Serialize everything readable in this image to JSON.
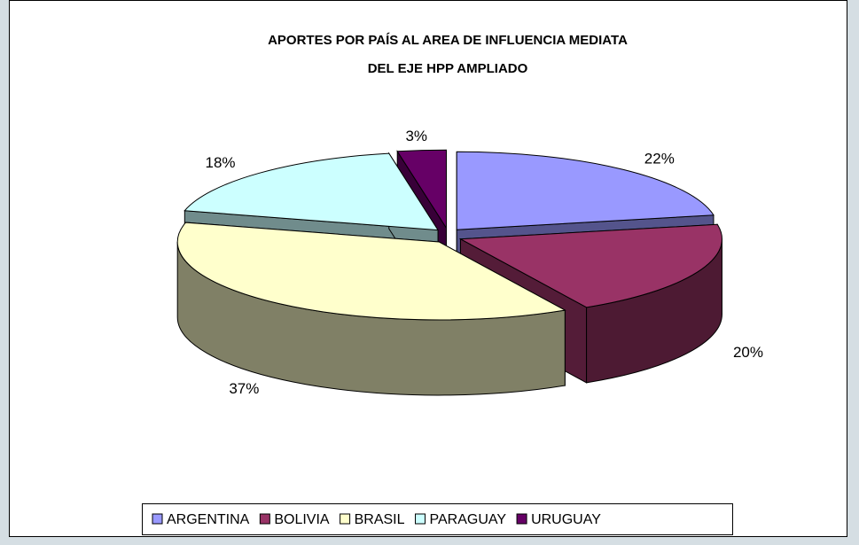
{
  "chart_data": {
    "type": "pie",
    "title": [
      "APORTES POR PAÍS AL AREA DE INFLUENCIA MEDIATA",
      "DEL EJE HPP AMPLIADO"
    ],
    "categories": [
      "ARGENTINA",
      "BOLIVIA",
      "BRASIL",
      "PARAGUAY",
      "URUGUAY"
    ],
    "values": [
      22,
      20,
      37,
      18,
      3
    ],
    "value_labels": [
      "22%",
      "20%",
      "37%",
      "18%",
      "3%"
    ],
    "colors": [
      "#9999ff",
      "#993366",
      "#ffffcc",
      "#ccffff",
      "#660066"
    ],
    "legend": "bottom"
  }
}
